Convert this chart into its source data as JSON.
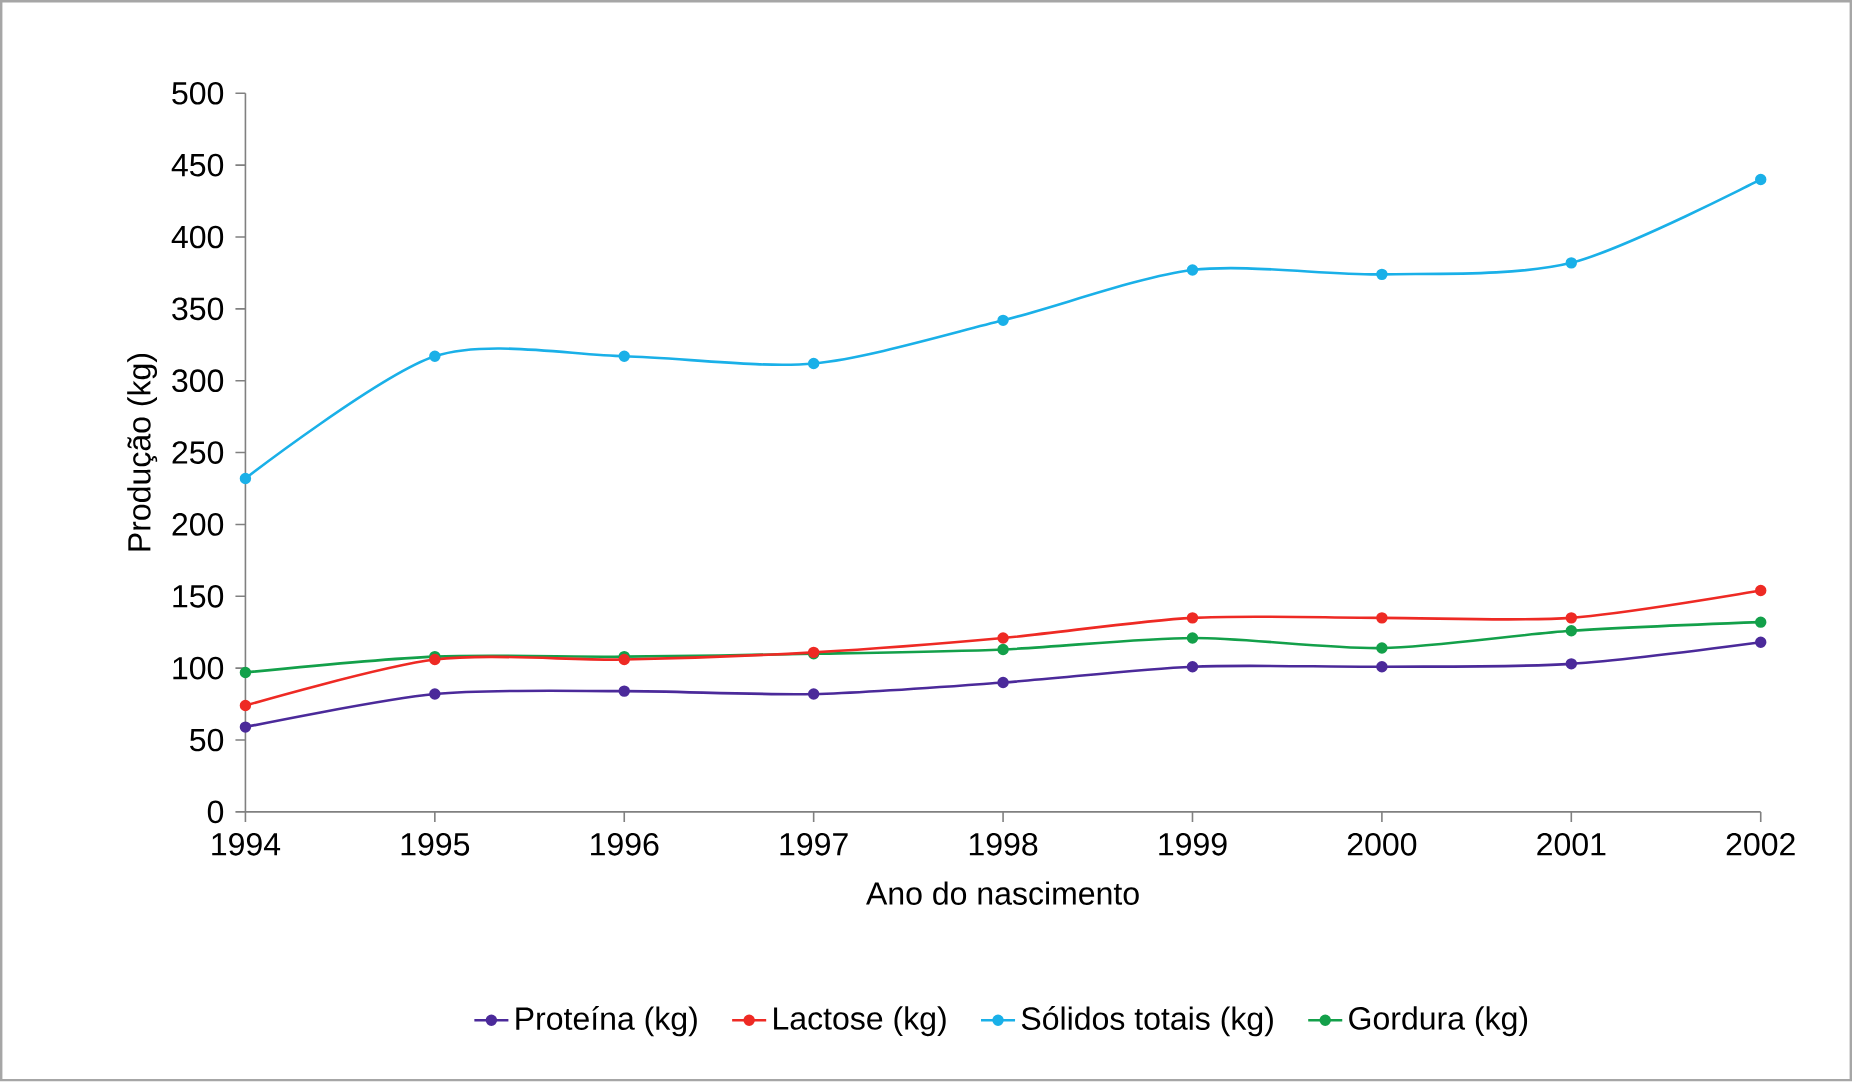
{
  "chart_data": {
    "type": "line",
    "xlabel": "Ano do nascimento",
    "ylabel": "Produção (kg)",
    "x": [
      1994,
      1995,
      1996,
      1997,
      1998,
      1999,
      2000,
      2001,
      2002
    ],
    "xlim": [
      1994,
      2002
    ],
    "xticks": [
      1994,
      1995,
      1996,
      1997,
      1998,
      1999,
      2000,
      2001,
      2002
    ],
    "ylim": [
      0,
      500
    ],
    "yticks": [
      0,
      50,
      100,
      150,
      200,
      250,
      300,
      350,
      400,
      450,
      500
    ],
    "grid": false,
    "legend": "bottom",
    "marker": "circle",
    "line_style": "solid",
    "series": [
      {
        "name": "Proteína (kg)",
        "color": "#4b2a9a",
        "values": [
          59,
          82,
          84,
          82,
          90,
          101,
          101,
          103,
          118
        ]
      },
      {
        "name": "Lactose (kg)",
        "color": "#ee2a24",
        "values": [
          74,
          106,
          106,
          111,
          121,
          135,
          135,
          135,
          154
        ]
      },
      {
        "name": "Sólidos totais (kg)",
        "color": "#1ab0e8",
        "values": [
          232,
          317,
          317,
          312,
          342,
          377,
          374,
          382,
          440
        ]
      },
      {
        "name": "Gordura (kg)",
        "color": "#13a04a",
        "values": [
          97,
          108,
          108,
          110,
          113,
          121,
          114,
          126,
          132
        ]
      }
    ]
  }
}
